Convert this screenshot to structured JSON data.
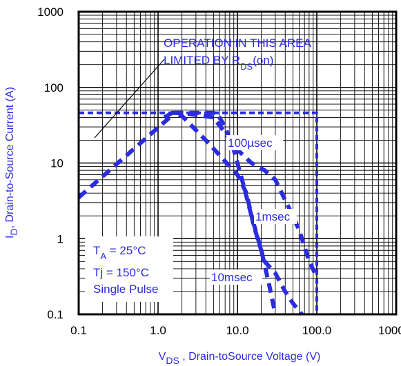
{
  "chart_data": {
    "type": "line",
    "title": "",
    "x_scale": "log",
    "y_scale": "log",
    "xlim": [
      0.1,
      1000
    ],
    "ylim": [
      0.1,
      1000
    ],
    "x_ticks": [
      "0.1",
      "1.0",
      "10.0",
      "100.0",
      "1000.0"
    ],
    "y_ticks": [
      "0.1",
      "1",
      "10",
      "100",
      "1000"
    ],
    "xlabel": {
      "main": "V",
      "sub": "DS",
      "rest": " , Drain-toSource Voltage (V)"
    },
    "ylabel": {
      "main": "I",
      "sub": "D",
      "rest": ",  Drain-to-Source Current (A)"
    },
    "grid": true,
    "line_color": "#2b2be0",
    "series": [
      {
        "x": [
          0.1,
          1.4,
          1.6,
          5.5,
          7,
          9,
          12,
          15,
          20,
          25,
          30
        ],
        "y": [
          3.5,
          40,
          46,
          46,
          30,
          15,
          5,
          2,
          0.7,
          0.25,
          0.1
        ]
      },
      {
        "x": [
          1.2,
          1.5,
          2,
          4,
          10,
          13,
          16,
          22,
          30,
          40,
          50,
          65
        ],
        "y": [
          40,
          46,
          42,
          20,
          7,
          4,
          1.5,
          0.5,
          0.35,
          0.2,
          0.14,
          0.1
        ]
      },
      {
        "x": [
          1.5,
          2,
          5,
          10,
          15,
          22,
          30,
          45,
          60,
          80,
          95
        ],
        "y": [
          46,
          46,
          40,
          15,
          10,
          8,
          6,
          2.5,
          1.3,
          0.5,
          0.35
        ]
      },
      {
        "x": [
          0.1,
          100,
          100
        ],
        "y": [
          46,
          46,
          0.1
        ]
      }
    ],
    "annotations": {
      "region_line1": "OPERATION IN THIS AREA",
      "region_line2_main": "LIMITED BY R",
      "region_line2_sub": "DS",
      "region_line2_rest": "(on)",
      "curve_100us": "100µsec",
      "curve_1ms": "1msec",
      "curve_10ms": "10msec",
      "ta_main": "T",
      "ta_sub": "A",
      "ta_rest": " = 25°C",
      "tj": "Tj = 150°C",
      "pulse": "Single Pulse"
    }
  }
}
